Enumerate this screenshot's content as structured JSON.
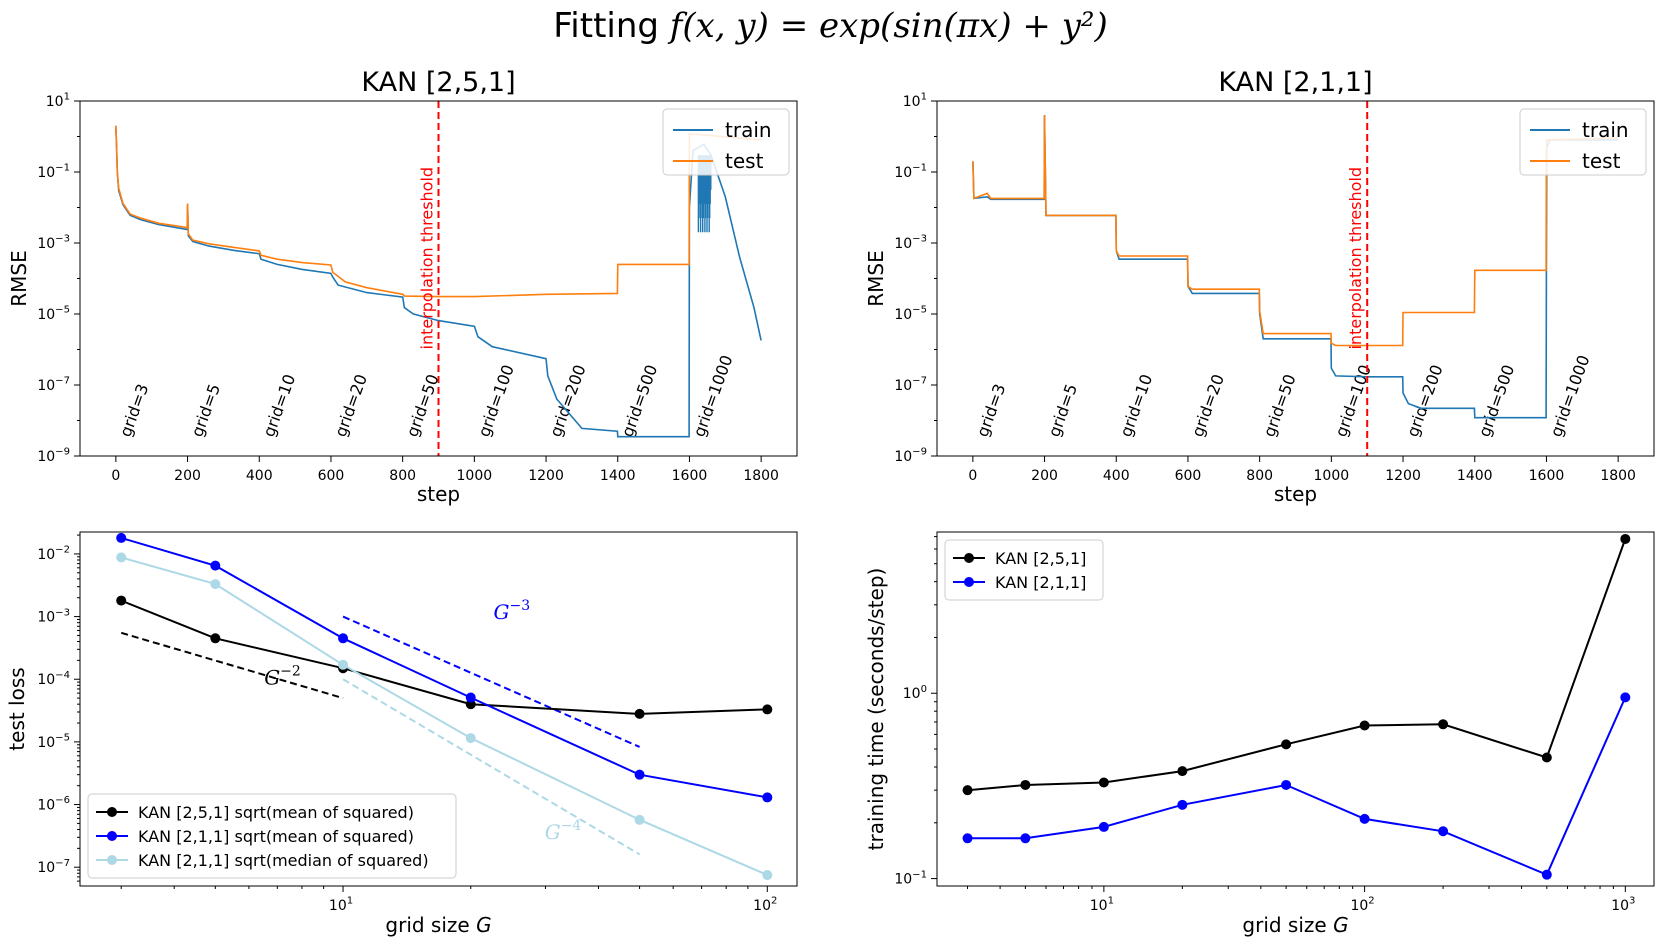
{
  "figure": {
    "title_prefix": "Fitting ",
    "title_math": "f(x, y) = exp(sin(πx) + y²)"
  },
  "chart_data": [
    {
      "id": "top-left",
      "type": "line",
      "title": "KAN [2,5,1]",
      "xlabel": "step",
      "ylabel": "RMSE",
      "yscale": "log",
      "xlim": [
        -100,
        1900
      ],
      "ylim_exp": [
        -9,
        1
      ],
      "xticks": [
        0,
        200,
        400,
        600,
        800,
        1000,
        1200,
        1400,
        1600,
        1800
      ],
      "yticks": [
        [
          "10",
          "1",
          1
        ],
        [
          "10",
          "−1",
          -1
        ],
        [
          "10",
          "−3",
          -3
        ],
        [
          "10",
          "−5",
          -5
        ],
        [
          "10",
          "−7",
          -7
        ],
        [
          "10",
          "−9",
          -9
        ]
      ],
      "legend": [
        "train",
        "test"
      ],
      "legend_loc": "upper right",
      "vline": {
        "x": 900,
        "label": "interpolation threshold",
        "color": "#ff0000"
      },
      "grid_labels": [
        [
          "grid=3",
          0
        ],
        [
          "grid=5",
          200
        ],
        [
          "grid=10",
          400
        ],
        [
          "grid=20",
          600
        ],
        [
          "grid=50",
          800
        ],
        [
          "grid=100",
          1000
        ],
        [
          "grid=200",
          1200
        ],
        [
          "grid=500",
          1400
        ],
        [
          "grid=1000",
          1600
        ]
      ],
      "series": [
        {
          "name": "train",
          "color": "#1f77b4",
          "points": [
            [
              0,
              2.0
            ],
            [
              2,
              0.5
            ],
            [
              4,
              0.1
            ],
            [
              8,
              0.03
            ],
            [
              20,
              0.012
            ],
            [
              40,
              0.006
            ],
            [
              70,
              0.0045
            ],
            [
              120,
              0.0033
            ],
            [
              190,
              0.0025
            ],
            [
              199,
              0.0024
            ],
            [
              200,
              0.012
            ],
            [
              202,
              0.0016
            ],
            [
              215,
              0.0011
            ],
            [
              260,
              0.00082
            ],
            [
              330,
              0.00062
            ],
            [
              400,
              0.0005
            ],
            [
              405,
              0.00035
            ],
            [
              450,
              0.00025
            ],
            [
              520,
              0.00018
            ],
            [
              600,
              0.00014
            ],
            [
              605,
              0.00011
            ],
            [
              620,
              6.5e-05
            ],
            [
              700,
              4e-05
            ],
            [
              800,
              3e-05
            ],
            [
              805,
              1.5e-05
            ],
            [
              830,
              1e-05
            ],
            [
              900,
              6.5e-06
            ],
            [
              1000,
              4.5e-06
            ],
            [
              1010,
              2.3e-06
            ],
            [
              1050,
              1.2e-06
            ],
            [
              1200,
              5.5e-07
            ],
            [
              1205,
              1.8e-07
            ],
            [
              1230,
              4e-08
            ],
            [
              1300,
              6e-09
            ],
            [
              1399,
              5e-09
            ],
            [
              1400,
              3.5e-09
            ],
            [
              1599,
              3.5e-09
            ],
            [
              1600,
              0.01
            ],
            [
              1610,
              0.4
            ],
            [
              1640,
              0.6
            ],
            [
              1660,
              0.3
            ],
            [
              1700,
              0.02
            ],
            [
              1740,
              0.0004
            ],
            [
              1780,
              1.5e-05
            ],
            [
              1800,
              1.8e-06
            ]
          ]
        },
        {
          "name": "test",
          "color": "#ff7f0e",
          "points": [
            [
              0,
              2.0
            ],
            [
              2,
              0.5
            ],
            [
              4,
              0.1
            ],
            [
              8,
              0.035
            ],
            [
              20,
              0.013
            ],
            [
              40,
              0.0065
            ],
            [
              70,
              0.005
            ],
            [
              120,
              0.0036
            ],
            [
              190,
              0.0028
            ],
            [
              199,
              0.0027
            ],
            [
              200,
              0.013
            ],
            [
              202,
              0.0018
            ],
            [
              215,
              0.0012
            ],
            [
              260,
              0.00095
            ],
            [
              330,
              0.00075
            ],
            [
              400,
              0.0006
            ],
            [
              405,
              0.00045
            ],
            [
              450,
              0.00035
            ],
            [
              520,
              0.00028
            ],
            [
              600,
              0.00024
            ],
            [
              605,
              0.00015
            ],
            [
              640,
              8e-05
            ],
            [
              700,
              5.5e-05
            ],
            [
              800,
              3.6e-05
            ],
            [
              805,
              3.2e-05
            ],
            [
              900,
              3.1e-05
            ],
            [
              1000,
              3.1e-05
            ],
            [
              1200,
              3.6e-05
            ],
            [
              1399,
              3.8e-05
            ],
            [
              1400,
              0.00025
            ],
            [
              1599,
              0.00025
            ],
            [
              1600,
              1.2
            ],
            [
              1800,
              0.8
            ]
          ]
        }
      ],
      "train_noise_band": {
        "x_start": 1625,
        "x_end": 1660,
        "y_high": 0.3,
        "y_low": 0.002
      }
    },
    {
      "id": "top-right",
      "type": "line",
      "title": "KAN [2,1,1]",
      "xlabel": "step",
      "ylabel": "RMSE",
      "yscale": "log",
      "xlim": [
        -100,
        1900
      ],
      "ylim_exp": [
        -9,
        1
      ],
      "xticks": [
        0,
        200,
        400,
        600,
        800,
        1000,
        1200,
        1400,
        1600,
        1800
      ],
      "yticks": [
        [
          "10",
          "1",
          1
        ],
        [
          "10",
          "−1",
          -1
        ],
        [
          "10",
          "−3",
          -3
        ],
        [
          "10",
          "−5",
          -5
        ],
        [
          "10",
          "−7",
          -7
        ],
        [
          "10",
          "−9",
          -9
        ]
      ],
      "legend": [
        "train",
        "test"
      ],
      "legend_loc": "upper right",
      "vline": {
        "x": 1100,
        "label": "interpolation threshold",
        "color": "#ff0000"
      },
      "grid_labels": [
        [
          "grid=3",
          0
        ],
        [
          "grid=5",
          200
        ],
        [
          "grid=10",
          400
        ],
        [
          "grid=20",
          600
        ],
        [
          "grid=50",
          800
        ],
        [
          "grid=100",
          1000
        ],
        [
          "grid=200",
          1200
        ],
        [
          "grid=500",
          1400
        ],
        [
          "grid=1000",
          1600
        ]
      ],
      "series": [
        {
          "name": "train",
          "color": "#1f77b4",
          "points": [
            [
              0,
              0.2
            ],
            [
              3,
              0.018
            ],
            [
              40,
              0.02
            ],
            [
              50,
              0.017
            ],
            [
              199,
              0.017
            ],
            [
              200,
              4.0
            ],
            [
              204,
              0.006
            ],
            [
              399,
              0.006
            ],
            [
              400,
              0.0006
            ],
            [
              408,
              0.00035
            ],
            [
              599,
              0.00035
            ],
            [
              600,
              6e-05
            ],
            [
              612,
              3.8e-05
            ],
            [
              799,
              3.8e-05
            ],
            [
              800,
              1e-05
            ],
            [
              810,
              2e-06
            ],
            [
              999,
              2e-06
            ],
            [
              1000,
              3e-07
            ],
            [
              1012,
              1.8e-07
            ],
            [
              1099,
              1.7e-07
            ],
            [
              1100,
              1.7e-07
            ],
            [
              1199,
              1.7e-07
            ],
            [
              1200,
              6e-08
            ],
            [
              1215,
              3e-08
            ],
            [
              1250,
              2.2e-08
            ],
            [
              1399,
              2.2e-08
            ],
            [
              1400,
              1.2e-08
            ],
            [
              1599,
              1.2e-08
            ],
            [
              1600,
              0.00016
            ],
            [
              1601,
              0.5
            ],
            [
              1610,
              0.8
            ],
            [
              1800,
              0.8
            ]
          ]
        },
        {
          "name": "test",
          "color": "#ff7f0e",
          "points": [
            [
              0,
              0.2
            ],
            [
              3,
              0.018
            ],
            [
              40,
              0.025
            ],
            [
              50,
              0.018
            ],
            [
              199,
              0.018
            ],
            [
              200,
              4.0
            ],
            [
              204,
              0.006
            ],
            [
              399,
              0.006
            ],
            [
              400,
              0.0006
            ],
            [
              408,
              0.00043
            ],
            [
              599,
              0.00043
            ],
            [
              600,
              6e-05
            ],
            [
              612,
              5e-05
            ],
            [
              799,
              5e-05
            ],
            [
              800,
              1.2e-05
            ],
            [
              810,
              2.8e-06
            ],
            [
              999,
              2.8e-06
            ],
            [
              1000,
              1.5e-06
            ],
            [
              1012,
              1.3e-06
            ],
            [
              1199,
              1.3e-06
            ],
            [
              1200,
              1.1e-05
            ],
            [
              1399,
              1.1e-05
            ],
            [
              1400,
              0.00017
            ],
            [
              1599,
              0.00017
            ],
            [
              1600,
              0.8
            ],
            [
              1800,
              0.9
            ]
          ]
        }
      ]
    },
    {
      "id": "bottom-left",
      "type": "line",
      "xlabel_text": "grid size ",
      "xlabel_var": "G",
      "ylabel": "test loss",
      "xscale": "log",
      "yscale": "log",
      "xlim_log": [
        0.38,
        2.07
      ],
      "ylim_log": [
        -7.3,
        -1.65
      ],
      "xticks": [
        [
          "10",
          "1",
          1
        ],
        [
          "10",
          "2",
          2
        ]
      ],
      "yticks": [
        [
          "10",
          "−2",
          -2
        ],
        [
          "10",
          "−3",
          -3
        ],
        [
          "10",
          "−4",
          -4
        ],
        [
          "10",
          "−5",
          -5
        ],
        [
          "10",
          "−6",
          -6
        ],
        [
          "10",
          "−7",
          -7
        ]
      ],
      "legend_loc": "lower left",
      "series": [
        {
          "name": "KAN [2,5,1] sqrt(mean of squared)",
          "color": "#000000",
          "x": [
            3,
            5,
            10,
            20,
            50,
            100
          ],
          "y": [
            0.0018,
            0.00045,
            0.00015,
            4e-05,
            2.8e-05,
            3.3e-05
          ]
        },
        {
          "name": "KAN [2,1,1] sqrt(mean of squared)",
          "color": "#0000ff",
          "x": [
            3,
            5,
            10,
            20,
            50,
            100
          ],
          "y": [
            0.018,
            0.0065,
            0.00045,
            5.1e-05,
            3e-06,
            1.3e-06
          ]
        },
        {
          "name": "KAN [2,1,1] sqrt(median of squared)",
          "color": "#add8e6",
          "x": [
            3,
            5,
            10,
            20,
            50,
            100
          ],
          "y": [
            0.0088,
            0.0033,
            0.00017,
            1.15e-05,
            5.7e-07,
            7.5e-08
          ]
        }
      ],
      "reference_lines": [
        {
          "label_base": "G",
          "label_exp": "−2",
          "color": "#000000",
          "x": [
            3,
            10
          ],
          "y": [
            0.00055,
            5e-05
          ],
          "label_at": [
            7.2,
            8.3e-05
          ]
        },
        {
          "label_base": "G",
          "label_exp": "−3",
          "color": "#0000ff",
          "x": [
            10,
            50
          ],
          "y": [
            0.001,
            8.3e-06
          ],
          "label_at": [
            25,
            0.00092
          ]
        },
        {
          "label_base": "G",
          "label_exp": "−4",
          "color": "#add8e6",
          "x": [
            10,
            50
          ],
          "y": [
            0.0001,
            1.6e-07
          ],
          "label_at": [
            33,
            2.8e-07
          ]
        }
      ]
    },
    {
      "id": "bottom-right",
      "type": "line",
      "xlabel_text": "grid size ",
      "xlabel_var": "G",
      "ylabel": "training time (seconds/step)",
      "xscale": "log",
      "yscale": "log",
      "xlim_log": [
        0.36,
        3.11
      ],
      "ylim_log": [
        -1.04,
        0.87
      ],
      "xticks": [
        [
          "10",
          "1",
          1
        ],
        [
          "10",
          "2",
          2
        ],
        [
          "10",
          "3",
          3
        ]
      ],
      "yticks": [
        [
          "10",
          "0",
          0
        ],
        [
          "10",
          "−1",
          -1
        ]
      ],
      "legend_loc": "upper left",
      "series": [
        {
          "name": "KAN [2,5,1]",
          "color": "#000000",
          "x": [
            3,
            5,
            10,
            20,
            50,
            100,
            200,
            500,
            1000
          ],
          "y": [
            0.3,
            0.32,
            0.33,
            0.38,
            0.53,
            0.67,
            0.68,
            0.45,
            6.8
          ]
        },
        {
          "name": "KAN [2,1,1]",
          "color": "#0000ff",
          "x": [
            3,
            5,
            10,
            20,
            50,
            100,
            200,
            500,
            1000
          ],
          "y": [
            0.165,
            0.165,
            0.19,
            0.25,
            0.32,
            0.21,
            0.18,
            0.105,
            0.95
          ]
        }
      ]
    }
  ]
}
